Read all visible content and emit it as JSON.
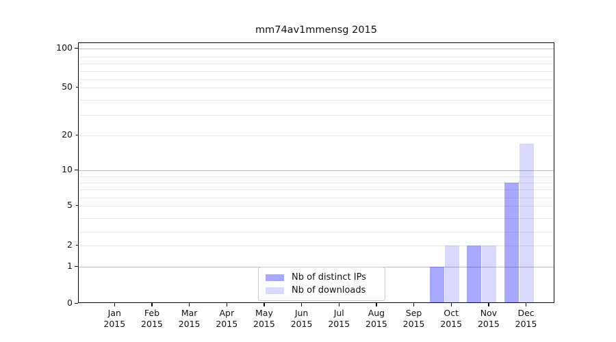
{
  "chart_data": {
    "type": "bar",
    "title": "mm74av1mmensg 2015",
    "xlabel": "",
    "ylabel": "",
    "yscale": "symlog",
    "ylim": [
      0,
      100
    ],
    "grid": true,
    "legend_position": "lower center",
    "ytick_labels": [
      100,
      50,
      20,
      10,
      5,
      2,
      1,
      0
    ],
    "categories": [
      {
        "month": "Jan",
        "year": "2015"
      },
      {
        "month": "Feb",
        "year": "2015"
      },
      {
        "month": "Mar",
        "year": "2015"
      },
      {
        "month": "Apr",
        "year": "2015"
      },
      {
        "month": "May",
        "year": "2015"
      },
      {
        "month": "Jun",
        "year": "2015"
      },
      {
        "month": "Jul",
        "year": "2015"
      },
      {
        "month": "Aug",
        "year": "2015"
      },
      {
        "month": "Sep",
        "year": "2015"
      },
      {
        "month": "Oct",
        "year": "2015"
      },
      {
        "month": "Nov",
        "year": "2015"
      },
      {
        "month": "Dec",
        "year": "2015"
      }
    ],
    "series": [
      {
        "name": "Nb of distinct IPs",
        "base_color": "#0000ff",
        "alpha": 0.34,
        "values": [
          0,
          0,
          0,
          0,
          0,
          0,
          0,
          0,
          0,
          1,
          2,
          8
        ]
      },
      {
        "name": "Nb of downloads",
        "base_color": "#0000ff",
        "alpha": 0.15,
        "values": [
          0,
          0,
          0,
          0,
          0,
          0,
          0,
          0,
          0,
          2,
          2,
          17
        ]
      }
    ]
  }
}
